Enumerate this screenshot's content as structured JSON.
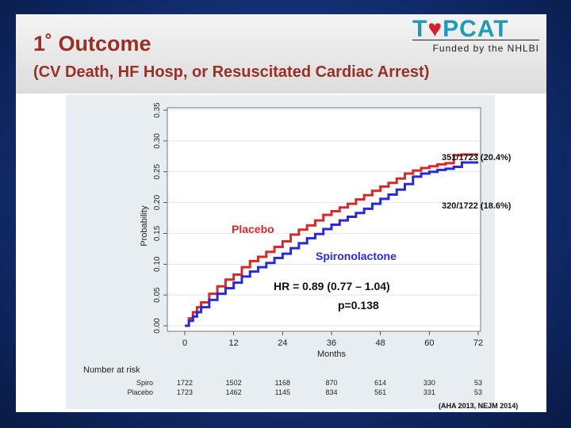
{
  "slide": {
    "title_line1": "1˚ Outcome",
    "title_line2": "(CV Death, HF Hosp, or Resuscitated Cardiac Arrest)",
    "logo": {
      "pre": "T",
      "heart": "♥",
      "post": "PCAT",
      "subtitle": "Funded by the NHLBI"
    },
    "source": "(AHA 2013,   NEJM 2014)"
  },
  "colors": {
    "placebo": "#d42a2a",
    "spiro": "#2a2ad4",
    "title": "#9a2f25",
    "panel": "#e8edf2"
  },
  "chart_data": {
    "type": "line",
    "title": "",
    "xlabel": "Months",
    "ylabel": "Probability",
    "xlim": [
      0,
      72
    ],
    "ylim": [
      0,
      0.35
    ],
    "x_ticks": [
      "0",
      "12",
      "24",
      "36",
      "48",
      "60",
      "72"
    ],
    "y_ticks": [
      "0.00",
      "0.05",
      "0.10",
      "0.15",
      "0.20",
      "0.25",
      "0.30",
      "0.35"
    ],
    "series": [
      {
        "name": "Placebo",
        "label_text": "Placebo",
        "end_label": "351/1723 (20.4%)",
        "x": [
          0,
          1,
          2,
          3,
          4,
          6,
          8,
          10,
          12,
          14,
          16,
          18,
          20,
          22,
          24,
          26,
          28,
          30,
          32,
          34,
          36,
          38,
          40,
          42,
          44,
          46,
          48,
          50,
          52,
          54,
          56,
          58,
          60,
          62,
          64,
          66,
          68,
          70,
          72
        ],
        "values": [
          0.0,
          0.012,
          0.022,
          0.03,
          0.038,
          0.052,
          0.064,
          0.075,
          0.083,
          0.095,
          0.105,
          0.112,
          0.12,
          0.128,
          0.137,
          0.148,
          0.156,
          0.163,
          0.171,
          0.18,
          0.186,
          0.192,
          0.198,
          0.205,
          0.212,
          0.219,
          0.226,
          0.232,
          0.239,
          0.247,
          0.252,
          0.256,
          0.259,
          0.262,
          0.264,
          0.277,
          0.278,
          0.278,
          0.278
        ]
      },
      {
        "name": "Spironolactone",
        "label_text": "Spironolactone",
        "end_label": "320/1722 (18.6%)",
        "x": [
          0,
          1,
          2,
          3,
          4,
          6,
          8,
          10,
          12,
          14,
          16,
          18,
          20,
          22,
          24,
          26,
          28,
          30,
          32,
          34,
          36,
          38,
          40,
          42,
          44,
          46,
          48,
          50,
          52,
          54,
          56,
          58,
          60,
          62,
          64,
          66,
          68,
          70,
          72
        ],
        "values": [
          0.0,
          0.008,
          0.015,
          0.022,
          0.03,
          0.042,
          0.052,
          0.061,
          0.07,
          0.08,
          0.088,
          0.095,
          0.102,
          0.11,
          0.117,
          0.126,
          0.134,
          0.142,
          0.149,
          0.157,
          0.164,
          0.171,
          0.177,
          0.183,
          0.19,
          0.198,
          0.206,
          0.213,
          0.221,
          0.23,
          0.242,
          0.247,
          0.25,
          0.253,
          0.255,
          0.258,
          0.265,
          0.265,
          0.265
        ]
      }
    ],
    "annotations": {
      "hr": "HR = 0.89 (0.77 – 1.04)",
      "p": "p=0.138"
    },
    "number_at_risk": {
      "heading": "Number at risk",
      "rows": [
        {
          "label": "Spiro",
          "values": [
            "1722",
            "1502",
            "1168",
            "870",
            "614",
            "330",
            "53"
          ]
        },
        {
          "label": "Placebo",
          "values": [
            "1723",
            "1462",
            "1145",
            "834",
            "561",
            "331",
            "53"
          ]
        }
      ]
    }
  }
}
